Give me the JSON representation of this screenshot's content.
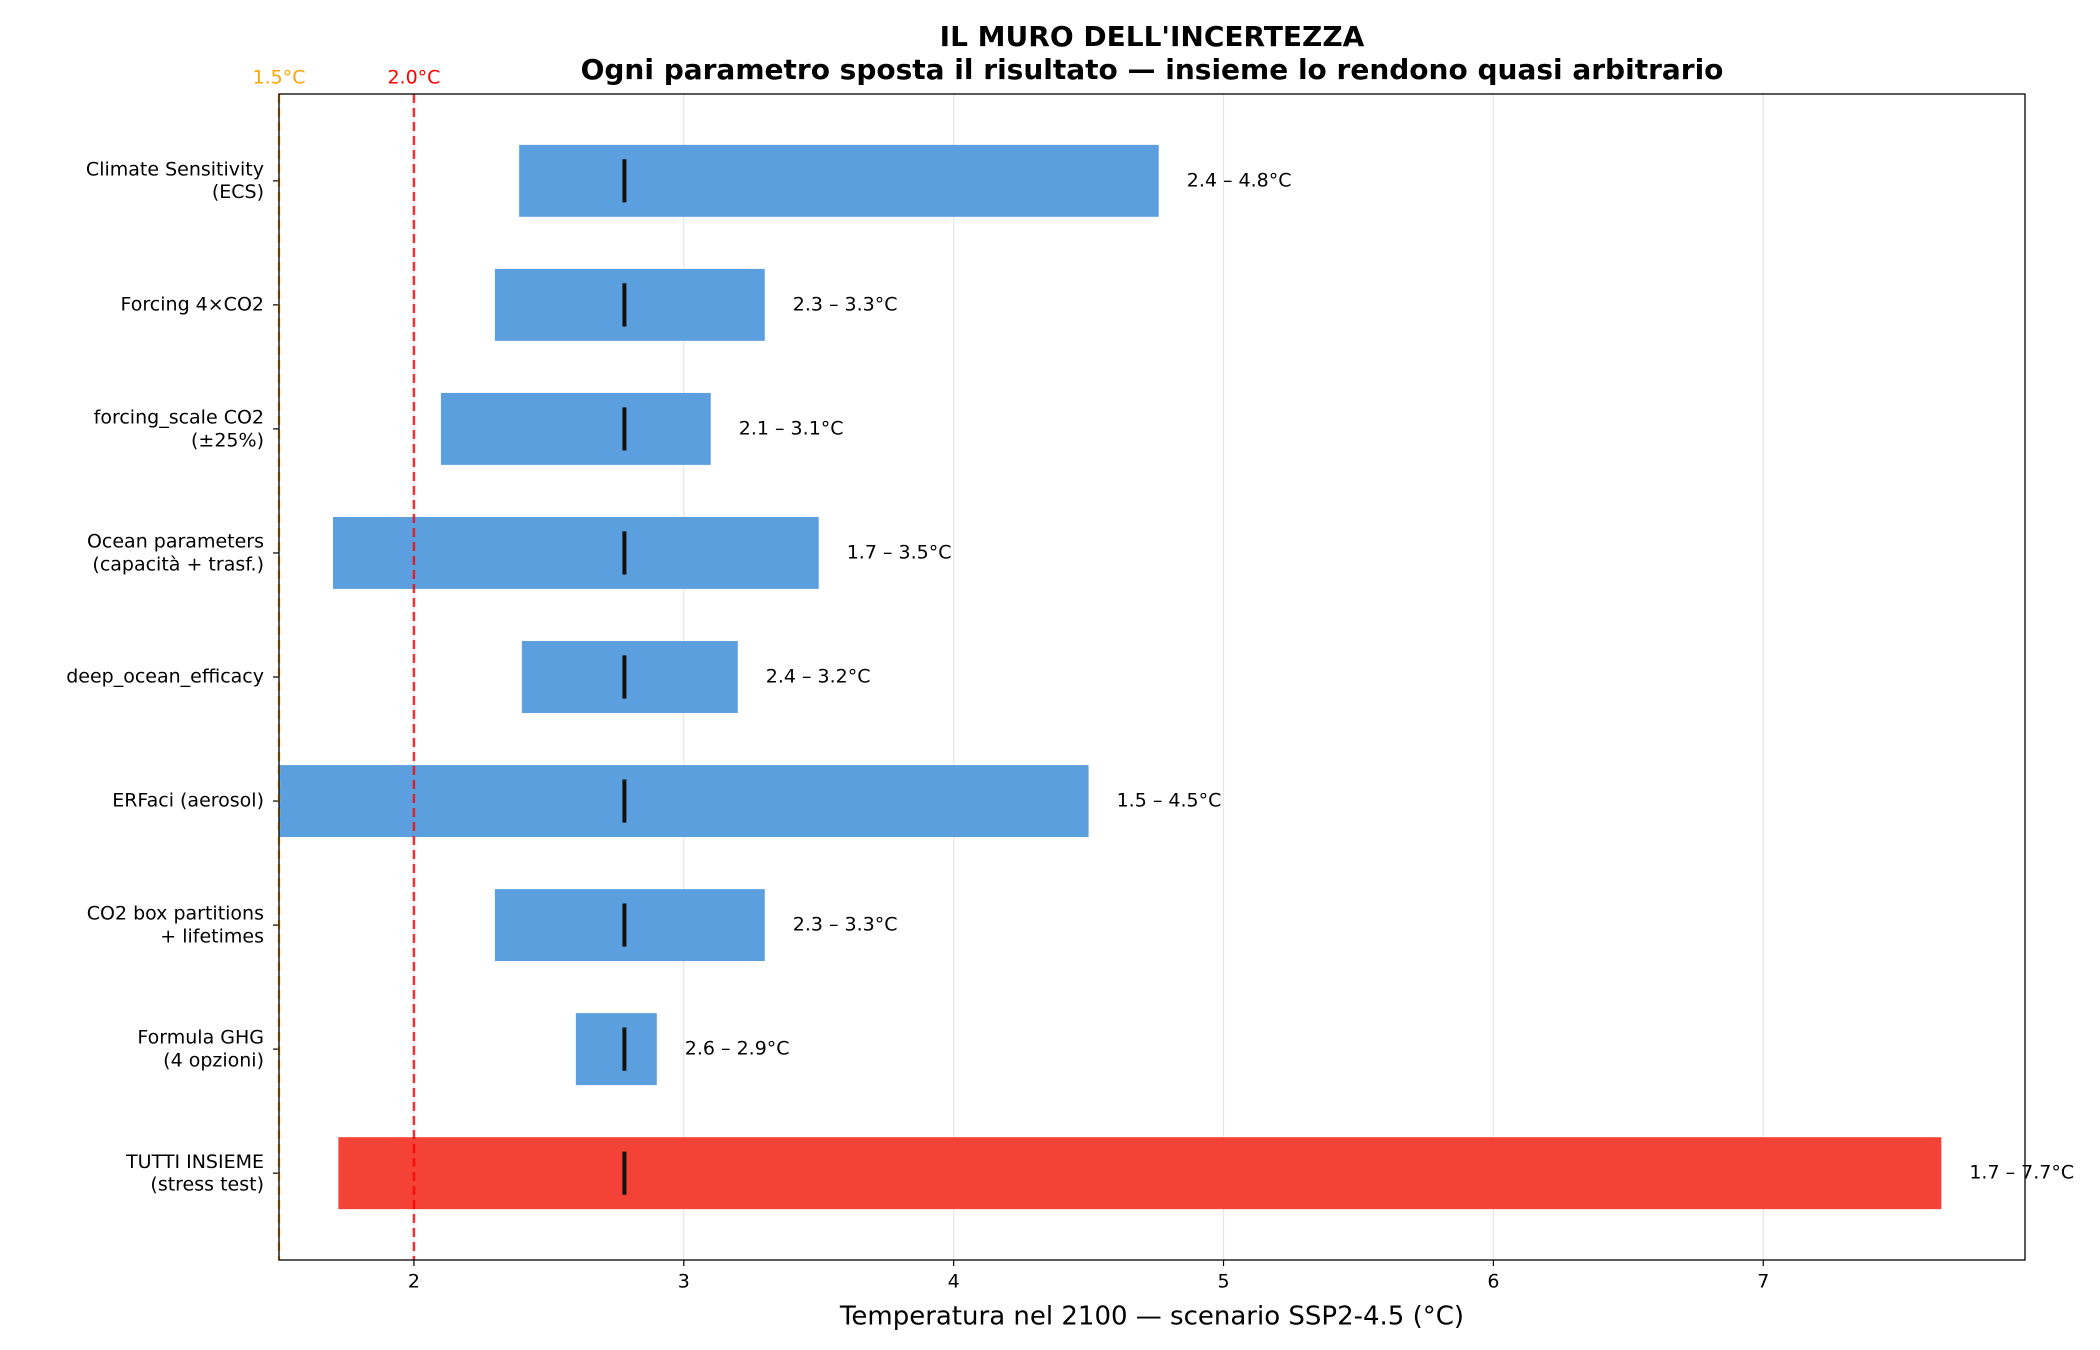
{
  "chart_data": {
    "type": "range_bar",
    "title": "IL MURO DELL'INCERTEZZA",
    "subtitle": "Ogni parametro sposta il risultato — insieme lo rendono quasi arbitrario",
    "xlabel": "Temperatura nel 2100 — scenario SSP2-4.5 (°C)",
    "categories": [
      "Climate Sensitivity\n(ECS)",
      "Forcing 4×CO2",
      "forcing_scale CO2\n(±25%)",
      "Ocean parameters\n(capacità + trasf.)",
      "deep_ocean_efficacy",
      "ERFaci (aerosol)",
      "CO2 box partitions\n+ lifetimes",
      "Formula GHG\n(4 opzioni)",
      "TUTTI INSIEME\n(stress test)"
    ],
    "low": [
      2.39,
      2.3,
      2.1,
      1.7,
      2.4,
      1.5,
      2.3,
      2.6,
      1.72
    ],
    "high": [
      4.76,
      3.3,
      3.1,
      3.5,
      3.2,
      4.5,
      3.3,
      2.9,
      7.66
    ],
    "central": [
      2.78,
      2.78,
      2.78,
      2.78,
      2.78,
      2.78,
      2.78,
      2.78,
      2.78
    ],
    "value_labels": [
      "2.4 – 4.8°C",
      "2.3 – 3.3°C",
      "2.1 – 3.1°C",
      "1.7 – 3.5°C",
      "2.4 – 3.2°C",
      "1.5 – 4.5°C",
      "2.3 – 3.3°C",
      "2.6 – 2.9°C",
      "1.7 – 7.7°C"
    ],
    "colors": [
      "#5b9fdf",
      "#5b9fdf",
      "#5b9fdf",
      "#5b9fdf",
      "#5b9fdf",
      "#5b9fdf",
      "#5b9fdf",
      "#5b9fdf",
      "#f44336"
    ],
    "reference_lines": [
      {
        "value": 1.5,
        "label": "1.5°C",
        "color": "#ffa500"
      },
      {
        "value": 2.0,
        "label": "2.0°C",
        "color": "#ff0000"
      }
    ],
    "xlim": [
      1.5,
      7.97
    ],
    "xticks": [
      2,
      3,
      4,
      5,
      6,
      7
    ],
    "grid": true
  }
}
